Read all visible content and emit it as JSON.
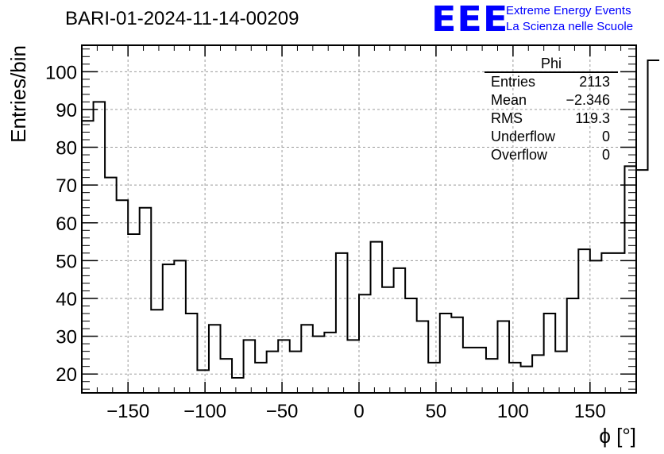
{
  "page": {
    "title": "BARI-01-2024-11-14-00209",
    "logo": {
      "mark": "EEE",
      "line1": "Extreme Energy Events",
      "line2": "La Scienza nelle Scuole"
    }
  },
  "stats_box": {
    "title": "Phi",
    "rows": [
      {
        "key": "Entries",
        "value": "2113"
      },
      {
        "key": "Mean",
        "value": "−2.346"
      },
      {
        "key": "RMS",
        "value": "119.3"
      },
      {
        "key": "Underflow",
        "value": "0"
      },
      {
        "key": "Overflow",
        "value": "0"
      }
    ]
  },
  "chart_data": {
    "type": "histogram",
    "title": "BARI-01-2024-11-14-00209",
    "xlabel": "ϕ [°]",
    "ylabel": "Entries/bin",
    "xlim": [
      -180,
      180
    ],
    "ylim": [
      15,
      107
    ],
    "xticks": [
      -150,
      -100,
      -50,
      0,
      50,
      100,
      150
    ],
    "xtick_labels": [
      "−150",
      "−100",
      "−50",
      "0",
      "50",
      "100",
      "150"
    ],
    "yticks": [
      20,
      30,
      40,
      50,
      60,
      70,
      80,
      90,
      100
    ],
    "grid": true,
    "line_color": "#000000",
    "bin_edges_start": -180,
    "bin_width": 7.5,
    "values": [
      87,
      92,
      72,
      66,
      57,
      64,
      37,
      49,
      50,
      36,
      21,
      33,
      24,
      19,
      29,
      23,
      26,
      29,
      26,
      33,
      30,
      31,
      52,
      29,
      41,
      55,
      43,
      48,
      40,
      34,
      23,
      36,
      35,
      27,
      27,
      24,
      34,
      23,
      22,
      25,
      36,
      26,
      40,
      53,
      50,
      52,
      52,
      75,
      74,
      103
    ]
  }
}
